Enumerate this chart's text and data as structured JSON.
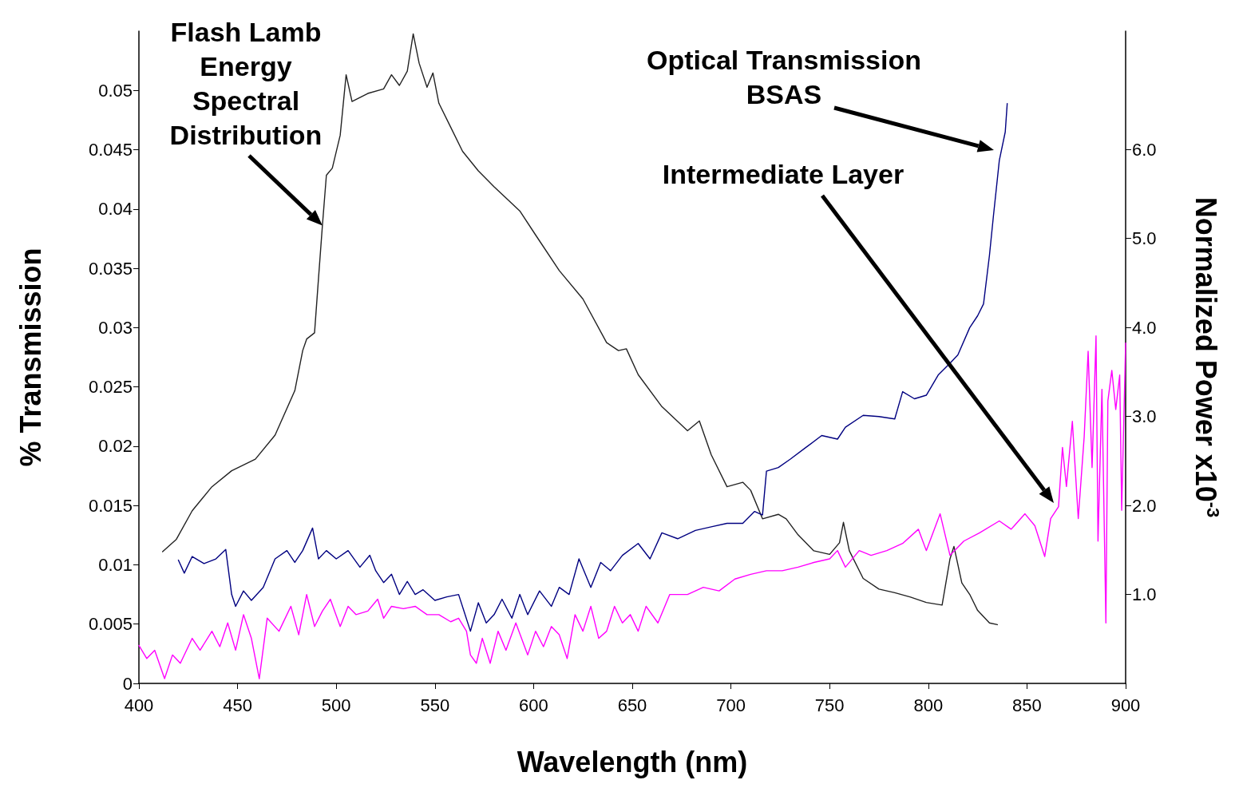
{
  "chart_data": {
    "type": "line",
    "xlabel": "Wavelength (nm)",
    "ylabel": "% Transmission",
    "y2label": "Normalized Power x10$^{-3}$",
    "xlim": [
      400,
      900
    ],
    "xticks": [
      400,
      450,
      500,
      550,
      600,
      650,
      700,
      750,
      800,
      850,
      900
    ],
    "ylim": [
      0,
      0.055
    ],
    "yticks": [
      0,
      0.005,
      0.01,
      0.015,
      0.02,
      0.025,
      0.03,
      0.035,
      0.04,
      0.045,
      0.05
    ],
    "y2lim": [
      0,
      7.33
    ],
    "y2ticks": [
      {
        "value": 1,
        "label": "1.0"
      },
      {
        "value": 2,
        "label": "2.0"
      },
      {
        "value": 3,
        "label": "3.0"
      },
      {
        "value": 4,
        "label": "4.0"
      },
      {
        "value": 5,
        "label": "5.0"
      },
      {
        "value": 6,
        "label": "6.0"
      }
    ],
    "grid": false,
    "marker": "none",
    "line_style": "solid",
    "annotations": [
      {
        "text": "Flash Lamb Energy Spectral Distribution",
        "x": 493,
        "y": 0.0386
      },
      "Optical Transmission BSAS",
      "Intermediate Layer"
    ],
    "series": [
      {
        "color": "#222222",
        "axis": "y2",
        "x": [
          412,
          419,
          427,
          437,
          447,
          459,
          469,
          479,
          483,
          485,
          489,
          491,
          493,
          495,
          498,
          502,
          505,
          508,
          516,
          524,
          528,
          532,
          536,
          539,
          542,
          546,
          549,
          552,
          558,
          564,
          572,
          580,
          593,
          601,
          613,
          625,
          637,
          643,
          647,
          653,
          665,
          678,
          684,
          690,
          698,
          706,
          710,
          716,
          724,
          728,
          734,
          742,
          750,
          755,
          757,
          760,
          767,
          775,
          783,
          791,
          799,
          807,
          811,
          813,
          817,
          821,
          825,
          831,
          835
        ],
        "values": [
          1.48,
          1.62,
          1.94,
          2.21,
          2.39,
          2.52,
          2.79,
          3.29,
          3.74,
          3.87,
          3.94,
          4.55,
          5.15,
          5.71,
          5.79,
          6.16,
          6.84,
          6.54,
          6.63,
          6.68,
          6.84,
          6.72,
          6.88,
          7.3,
          6.97,
          6.7,
          6.86,
          6.52,
          6.25,
          5.98,
          5.76,
          5.58,
          5.31,
          5.04,
          4.64,
          4.32,
          3.83,
          3.74,
          3.76,
          3.47,
          3.11,
          2.84,
          2.95,
          2.57,
          2.21,
          2.26,
          2.17,
          1.85,
          1.9,
          1.85,
          1.67,
          1.49,
          1.45,
          1.58,
          1.81,
          1.49,
          1.18,
          1.06,
          1.02,
          0.97,
          0.91,
          0.88,
          1.4,
          1.54,
          1.13,
          1.0,
          0.82,
          0.68,
          0.66
        ]
      },
      {
        "color": "#000080",
        "x": [
          420,
          423,
          427,
          433,
          439,
          444,
          447,
          449,
          453,
          457,
          463,
          469,
          475,
          479,
          483,
          488,
          491,
          495,
          500,
          506,
          512,
          517,
          520,
          524,
          528,
          532,
          536,
          540,
          544,
          550,
          556,
          562,
          568,
          572,
          576,
          580,
          584,
          589,
          593,
          597,
          603,
          609,
          613,
          618,
          623,
          629,
          634,
          639,
          645,
          653,
          659,
          665,
          673,
          682,
          690,
          698,
          706,
          712,
          716,
          718,
          724,
          730,
          738,
          746,
          754,
          758,
          767,
          775,
          783,
          787,
          793,
          799,
          805,
          811,
          815,
          821,
          825,
          828,
          831,
          833,
          836,
          839,
          840
        ],
        "values": [
          0.0104,
          0.0093,
          0.0107,
          0.0101,
          0.0105,
          0.0113,
          0.0075,
          0.0065,
          0.0078,
          0.007,
          0.0081,
          0.0105,
          0.0112,
          0.0102,
          0.0112,
          0.0131,
          0.0105,
          0.0112,
          0.0105,
          0.0112,
          0.0098,
          0.0108,
          0.0095,
          0.0085,
          0.0092,
          0.0075,
          0.0086,
          0.0075,
          0.0079,
          0.007,
          0.0073,
          0.0075,
          0.0044,
          0.0068,
          0.0051,
          0.0058,
          0.0071,
          0.0055,
          0.0075,
          0.0058,
          0.0078,
          0.0065,
          0.0081,
          0.0075,
          0.0105,
          0.0081,
          0.0102,
          0.0095,
          0.0108,
          0.0118,
          0.0105,
          0.0127,
          0.0122,
          0.0129,
          0.0132,
          0.0135,
          0.0135,
          0.0145,
          0.0142,
          0.0179,
          0.0182,
          0.0189,
          0.0199,
          0.0209,
          0.0206,
          0.0216,
          0.0226,
          0.0225,
          0.0223,
          0.0246,
          0.024,
          0.0243,
          0.026,
          0.027,
          0.0277,
          0.03,
          0.031,
          0.032,
          0.0361,
          0.0394,
          0.0441,
          0.0465,
          0.0489
        ]
      },
      {
        "color": "#ff00ff",
        "x": [
          400,
          404,
          408,
          413,
          417,
          421,
          427,
          431,
          437,
          441,
          445,
          449,
          453,
          457,
          461,
          465,
          471,
          477,
          481,
          485,
          489,
          493,
          497,
          502,
          506,
          510,
          516,
          521,
          524,
          528,
          534,
          540,
          546,
          552,
          558,
          562,
          566,
          568,
          571,
          574,
          578,
          582,
          586,
          591,
          597,
          601,
          605,
          609,
          613,
          617,
          621,
          625,
          629,
          633,
          637,
          641,
          645,
          649,
          653,
          657,
          663,
          669,
          678,
          686,
          694,
          702,
          710,
          718,
          726,
          734,
          742,
          750,
          754,
          758,
          765,
          771,
          779,
          787,
          795,
          799,
          806,
          811,
          818,
          826,
          836,
          842,
          849,
          854,
          859,
          862,
          866,
          868,
          870,
          873,
          876,
          879,
          881,
          883,
          885,
          886,
          888,
          890,
          891,
          893,
          895,
          897,
          898,
          900
        ],
        "values": [
          0.0032,
          0.0021,
          0.0028,
          0.0004,
          0.0024,
          0.0017,
          0.0038,
          0.0028,
          0.0044,
          0.0031,
          0.0051,
          0.0028,
          0.0058,
          0.0038,
          0.0004,
          0.0055,
          0.0044,
          0.0065,
          0.0041,
          0.0075,
          0.0048,
          0.0061,
          0.0071,
          0.0048,
          0.0065,
          0.0058,
          0.0061,
          0.0071,
          0.0055,
          0.0065,
          0.0063,
          0.0065,
          0.0058,
          0.0058,
          0.0052,
          0.0055,
          0.0044,
          0.0024,
          0.0017,
          0.0038,
          0.0017,
          0.0044,
          0.0028,
          0.0051,
          0.0024,
          0.0044,
          0.0031,
          0.0048,
          0.0041,
          0.0021,
          0.0058,
          0.0044,
          0.0065,
          0.0038,
          0.0044,
          0.0065,
          0.0051,
          0.0058,
          0.0044,
          0.0065,
          0.0051,
          0.0075,
          0.0075,
          0.0081,
          0.0078,
          0.0088,
          0.0092,
          0.0095,
          0.0095,
          0.0098,
          0.0102,
          0.0105,
          0.0112,
          0.0098,
          0.0112,
          0.0108,
          0.0112,
          0.0118,
          0.013,
          0.0112,
          0.0143,
          0.0108,
          0.012,
          0.0127,
          0.0137,
          0.013,
          0.0143,
          0.0133,
          0.0107,
          0.0139,
          0.0149,
          0.0199,
          0.0166,
          0.0221,
          0.0139,
          0.0208,
          0.028,
          0.0182,
          0.0293,
          0.012,
          0.0248,
          0.0051,
          0.0238,
          0.0264,
          0.0231,
          0.026,
          0.0146,
          0.0287
        ]
      }
    ]
  }
}
